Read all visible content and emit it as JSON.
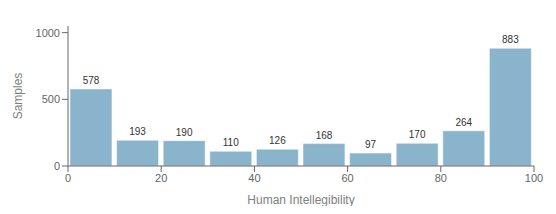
{
  "chart_data": {
    "type": "histogram",
    "bins": [
      0,
      10,
      20,
      30,
      40,
      50,
      60,
      70,
      80,
      90,
      100
    ],
    "values": [
      578,
      193,
      190,
      110,
      126,
      168,
      97,
      170,
      264,
      883
    ],
    "color": "#8ab4cc",
    "xlabel": "Human Intellegibility",
    "ylabel": "Samples",
    "xlim": [
      0,
      100
    ],
    "xticks": [
      0,
      20,
      40,
      60,
      80,
      100
    ],
    "ylim": [
      0,
      1050
    ],
    "yticks": [
      0,
      500,
      1000
    ],
    "grid": false,
    "data_labels": true
  }
}
